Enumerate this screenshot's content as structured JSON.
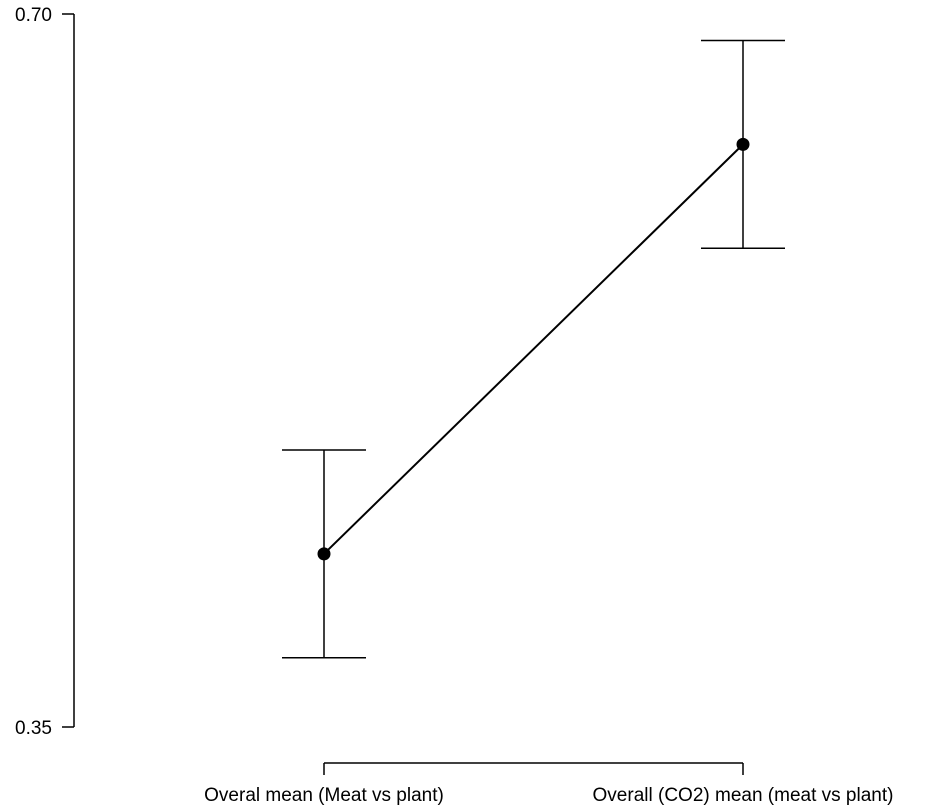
{
  "chart_data": {
    "type": "line",
    "categories": [
      "Overal mean (Meat vs plant)",
      "Overall (CO2) mean (meat vs plant)"
    ],
    "series": [
      {
        "values": [
          0.435,
          0.636
        ],
        "error_upper": [
          0.486,
          0.687
        ],
        "error_lower": [
          0.384,
          0.585
        ]
      }
    ],
    "y_ticks": [
      "0.35",
      "0.70"
    ],
    "ylim": [
      0.35,
      0.7
    ],
    "grid": false,
    "legend": "none",
    "colors": {
      "line": "#000000",
      "point": "#000000",
      "axis": "#000000"
    }
  }
}
